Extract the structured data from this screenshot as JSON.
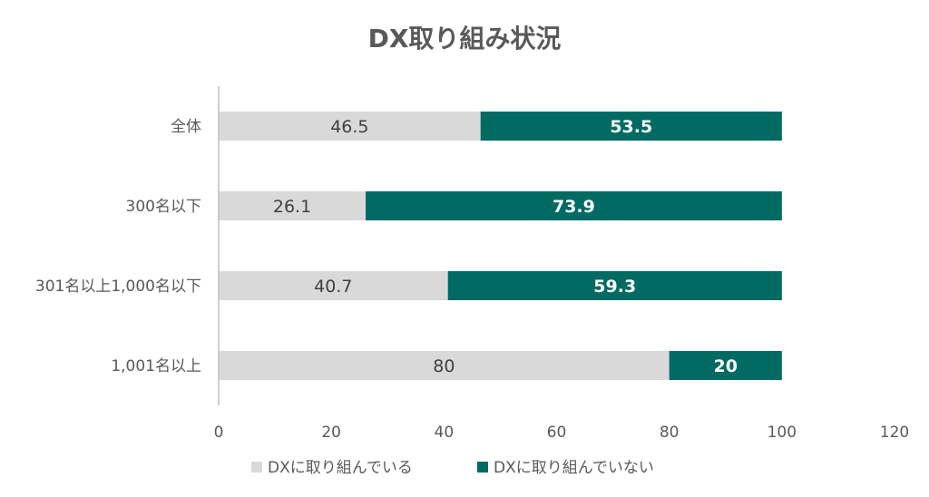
{
  "chart_data": {
    "type": "bar",
    "orientation": "horizontal",
    "stacked": true,
    "title": "DX取り組み状況",
    "categories": [
      "全体",
      "300名以下",
      "301名以上1,000名以下",
      "1,001名以上"
    ],
    "series": [
      {
        "name": "DXに取り組んでいる",
        "values": [
          46.5,
          26.1,
          40.7,
          80
        ],
        "color": "#d9d9d9",
        "label_display": [
          "46.5",
          "26.1",
          "40.7",
          "80"
        ]
      },
      {
        "name": "DXに取り組んでいない",
        "values": [
          53.5,
          73.9,
          59.3,
          20
        ],
        "color": "#006a63",
        "label_display": [
          "53.5",
          "73.9",
          "59.3",
          "20"
        ]
      }
    ],
    "xlim": [
      0,
      120
    ],
    "xticks": [
      "0",
      "20",
      "40",
      "60",
      "80",
      "100",
      "120"
    ],
    "grid": false,
    "legend_position": "bottom",
    "colors": {
      "axis": "#bfbfbf",
      "text": "#595959"
    }
  }
}
